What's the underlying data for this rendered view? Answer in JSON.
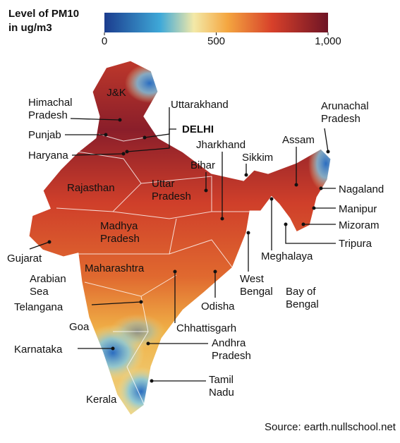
{
  "legend": {
    "title": [
      "Level of PM10",
      "in ug/m3"
    ],
    "range": [
      0,
      1000
    ],
    "ticks": [
      0,
      500,
      {
        "value": 1000,
        "label": "1,000"
      }
    ]
  },
  "places": [
    [
      "J&K"
    ],
    [
      "Himachal",
      "Pradesh"
    ],
    [
      "Uttarakhand"
    ],
    [
      "DELHI"
    ],
    [
      "Punjab"
    ],
    [
      "Haryana"
    ],
    [
      "Jharkhand"
    ],
    [
      "Sikkim"
    ],
    [
      "Assam"
    ],
    [
      "Arunachal",
      "Pradesh"
    ],
    [
      "Bihar"
    ],
    [
      "Rajasthan"
    ],
    [
      "Uttar",
      "Pradesh"
    ],
    [
      "Nagaland"
    ],
    [
      "Manipur"
    ],
    [
      "Mizoram"
    ],
    [
      "Tripura"
    ],
    [
      "Meghalaya"
    ],
    [
      "Madhya",
      "Pradesh"
    ],
    [
      "Gujarat"
    ],
    [
      "Arabian",
      "Sea"
    ],
    [
      "Maharashtra"
    ],
    [
      "West",
      "Bengal"
    ],
    [
      "Bay of",
      "Bengal"
    ],
    [
      "Telangana"
    ],
    [
      "Odisha"
    ],
    [
      "Goa"
    ],
    [
      "Chhattisgarh"
    ],
    [
      "Karnataka"
    ],
    [
      "Andhra",
      "Pradesh"
    ],
    [
      "Tamil",
      "Nadu"
    ],
    [
      "Kerala"
    ]
  ],
  "source": "Source: earth.nullschool.net"
}
